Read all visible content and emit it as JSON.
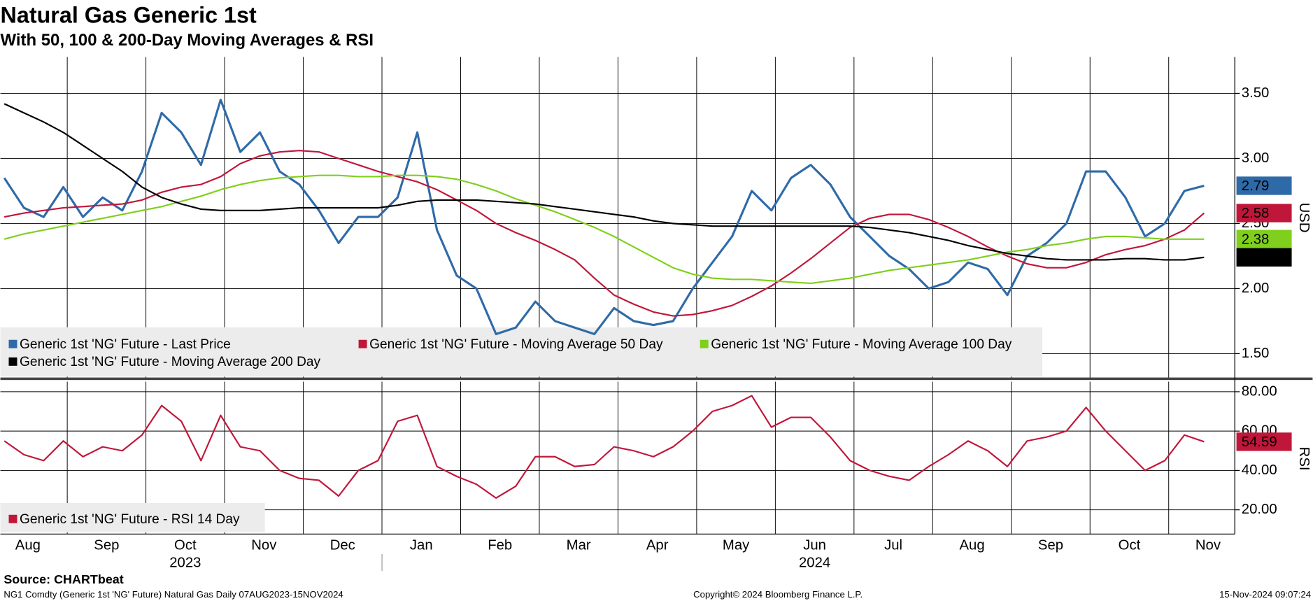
{
  "chart_data": [
    {
      "type": "line",
      "title": "Natural Gas Generic 1st",
      "subtitle": "With 50, 100 & 200-Day Moving Averages & RSI",
      "y_label": "USD",
      "legend": "bottom-left",
      "grid": true,
      "xlim": [
        7.15,
        22.84
      ],
      "ylim": [
        1.31,
        3.78
      ],
      "yticks": [
        {
          "value": 1.5,
          "label": "1.50"
        },
        {
          "value": 2,
          "label": "2.00"
        },
        {
          "value": 2.5,
          "label": "2.50"
        },
        {
          "value": 3,
          "label": "3.00"
        },
        {
          "value": 3.5,
          "label": "3.50"
        }
      ],
      "xticks": [
        {
          "value": 7,
          "label": "Aug"
        },
        {
          "value": 8,
          "label": "Sep"
        },
        {
          "value": 9,
          "label": "Oct"
        },
        {
          "value": 10,
          "label": "Nov"
        },
        {
          "value": 11,
          "label": "Dec"
        },
        {
          "value": 12,
          "label": "Jan"
        },
        {
          "value": 13,
          "label": "Feb"
        },
        {
          "value": 14,
          "label": "Mar"
        },
        {
          "value": 15,
          "label": "Apr"
        },
        {
          "value": 16,
          "label": "May"
        },
        {
          "value": 17,
          "label": "Jun"
        },
        {
          "value": 18,
          "label": "Jul"
        },
        {
          "value": 19,
          "label": "Aug"
        },
        {
          "value": 20,
          "label": "Sep"
        },
        {
          "value": 21,
          "label": "Oct"
        },
        {
          "value": 22,
          "label": "Nov"
        }
      ],
      "year_labels": [
        {
          "value": 9,
          "label": "2023"
        },
        {
          "value": 17,
          "label": "2024"
        }
      ],
      "x": [
        7.2,
        7.45,
        7.7,
        7.95,
        8.2,
        8.45,
        8.7,
        8.95,
        9.2,
        9.45,
        9.7,
        9.95,
        10.2,
        10.45,
        10.7,
        10.95,
        11.2,
        11.45,
        11.7,
        11.95,
        12.2,
        12.45,
        12.7,
        12.95,
        13.2,
        13.45,
        13.7,
        13.95,
        14.2,
        14.45,
        14.7,
        14.95,
        15.2,
        15.45,
        15.7,
        15.95,
        16.2,
        16.45,
        16.7,
        16.95,
        17.2,
        17.45,
        17.7,
        17.95,
        18.2,
        18.45,
        18.7,
        18.95,
        19.2,
        19.45,
        19.7,
        19.95,
        20.2,
        20.45,
        20.7,
        20.95,
        21.2,
        21.45,
        21.7,
        21.95,
        22.2,
        22.45
      ],
      "series": [
        {
          "name": "Generic 1st 'NG' Future - Last Price",
          "color": "#2f6aa8",
          "values": [
            2.85,
            2.62,
            2.55,
            2.78,
            2.55,
            2.7,
            2.6,
            2.9,
            3.35,
            3.2,
            2.95,
            3.45,
            3.05,
            3.2,
            2.9,
            2.8,
            2.6,
            2.35,
            2.55,
            2.55,
            2.7,
            3.2,
            2.45,
            2.1,
            2,
            1.65,
            1.7,
            1.9,
            1.75,
            1.7,
            1.65,
            1.85,
            1.75,
            1.72,
            1.75,
            2,
            2.2,
            2.4,
            2.75,
            2.6,
            2.85,
            2.95,
            2.8,
            2.55,
            2.4,
            2.25,
            2.15,
            2,
            2.05,
            2.2,
            2.15,
            1.95,
            2.25,
            2.35,
            2.5,
            2.9,
            2.9,
            2.7,
            2.4,
            2.5,
            2.75,
            2.79
          ]
        },
        {
          "name": "Generic 1st 'NG' Future - Moving Average 50 Day",
          "color": "#c0163a",
          "values": [
            2.55,
            2.58,
            2.6,
            2.62,
            2.63,
            2.64,
            2.65,
            2.68,
            2.74,
            2.78,
            2.8,
            2.86,
            2.96,
            3.02,
            3.05,
            3.06,
            3.05,
            3,
            2.95,
            2.9,
            2.86,
            2.82,
            2.76,
            2.68,
            2.6,
            2.5,
            2.43,
            2.37,
            2.3,
            2.22,
            2.08,
            1.95,
            1.88,
            1.82,
            1.79,
            1.8,
            1.83,
            1.87,
            1.94,
            2.02,
            2.12,
            2.23,
            2.35,
            2.47,
            2.54,
            2.57,
            2.57,
            2.53,
            2.47,
            2.4,
            2.32,
            2.25,
            2.19,
            2.16,
            2.16,
            2.2,
            2.26,
            2.3,
            2.33,
            2.38,
            2.45,
            2.58
          ]
        },
        {
          "name": "Generic 1st 'NG' Future - Moving Average 100 Day",
          "color": "#7fcf1c",
          "values": [
            2.38,
            2.42,
            2.45,
            2.48,
            2.51,
            2.54,
            2.57,
            2.6,
            2.63,
            2.67,
            2.71,
            2.76,
            2.8,
            2.83,
            2.85,
            2.86,
            2.87,
            2.87,
            2.86,
            2.86,
            2.87,
            2.87,
            2.86,
            2.84,
            2.8,
            2.75,
            2.69,
            2.64,
            2.59,
            2.53,
            2.47,
            2.4,
            2.32,
            2.24,
            2.16,
            2.11,
            2.08,
            2.07,
            2.07,
            2.06,
            2.05,
            2.04,
            2.06,
            2.08,
            2.11,
            2.14,
            2.16,
            2.18,
            2.2,
            2.22,
            2.25,
            2.28,
            2.3,
            2.33,
            2.35,
            2.38,
            2.4,
            2.4,
            2.39,
            2.38,
            2.38,
            2.38
          ]
        },
        {
          "name": "Generic 1st 'NG' Future - Moving Average 200 Day",
          "color": "#000000",
          "values": [
            3.42,
            3.35,
            3.28,
            3.2,
            3.1,
            3,
            2.9,
            2.78,
            2.7,
            2.65,
            2.61,
            2.6,
            2.6,
            2.6,
            2.61,
            2.62,
            2.62,
            2.62,
            2.62,
            2.62,
            2.64,
            2.67,
            2.68,
            2.68,
            2.68,
            2.67,
            2.66,
            2.65,
            2.63,
            2.61,
            2.59,
            2.57,
            2.55,
            2.52,
            2.5,
            2.49,
            2.48,
            2.48,
            2.48,
            2.48,
            2.48,
            2.48,
            2.48,
            2.48,
            2.47,
            2.45,
            2.43,
            2.4,
            2.37,
            2.33,
            2.3,
            2.27,
            2.25,
            2.23,
            2.22,
            2.22,
            2.22,
            2.23,
            2.23,
            2.22,
            2.22,
            2.24
          ]
        }
      ]
    },
    {
      "type": "line",
      "y_label": "RSI",
      "legend": "bottom-left",
      "grid": true,
      "ylim": [
        7.7,
        85.1
      ],
      "yticks": [
        {
          "value": 20,
          "label": "20.00"
        },
        {
          "value": 40,
          "label": "40.00"
        },
        {
          "value": 60,
          "label": "60.00"
        },
        {
          "value": 80,
          "label": "80.00"
        }
      ],
      "series": [
        {
          "name": "Generic 1st 'NG' Future - RSI 14 Day",
          "color": "#c0163a",
          "values": [
            55,
            48,
            45,
            55,
            47,
            52,
            50,
            58,
            73,
            65,
            45,
            68,
            52,
            50,
            40,
            36,
            35,
            27,
            40,
            45,
            65,
            68,
            42,
            37,
            33,
            26,
            32,
            47,
            47,
            42,
            43,
            52,
            50,
            47,
            52,
            60,
            70,
            73,
            78,
            62,
            67,
            67,
            57,
            45,
            40,
            37,
            35,
            42,
            48,
            55,
            50,
            42,
            55,
            57,
            60,
            72,
            60,
            50,
            40,
            45,
            58,
            54.59
          ]
        }
      ]
    }
  ],
  "footer": {
    "source": "Source: CHARTbeat",
    "description": "NG1 Comdty (Generic 1st 'NG' Future) Natural Gas  Daily 07AUG2023-15NOV2024",
    "copyright": "Copyright© 2024 Bloomberg Finance L.P.",
    "timestamp": "15-Nov-2024 09:07:24"
  }
}
